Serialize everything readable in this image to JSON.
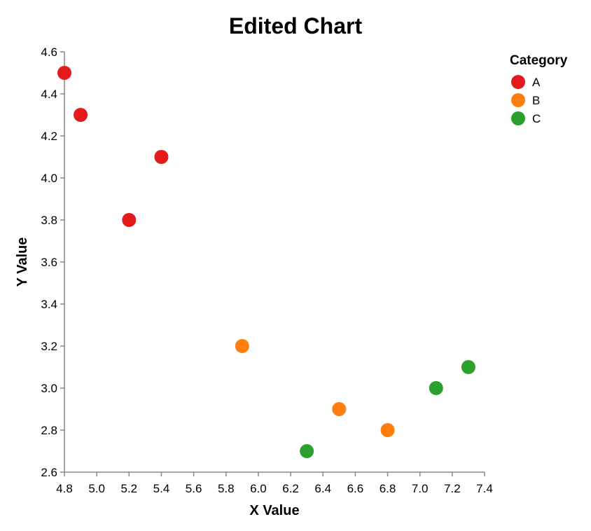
{
  "chart_data": {
    "type": "scatter",
    "title": "Edited Chart",
    "xlabel": "X Value",
    "ylabel": "Y Value",
    "xlim": [
      4.8,
      7.4
    ],
    "ylim": [
      2.6,
      4.6
    ],
    "x_ticks": [
      "4.8",
      "5.0",
      "5.2",
      "5.4",
      "5.6",
      "5.8",
      "6.0",
      "6.2",
      "6.4",
      "6.6",
      "6.8",
      "7.0",
      "7.2",
      "7.4"
    ],
    "y_ticks": [
      "2.6",
      "2.8",
      "3.0",
      "3.2",
      "3.4",
      "3.6",
      "3.8",
      "4.0",
      "4.2",
      "4.4",
      "4.6"
    ],
    "grid": false,
    "legend": {
      "title": "Category",
      "position": "top-right"
    },
    "series": [
      {
        "name": "A",
        "color": "#e41a1c",
        "points": [
          [
            4.8,
            4.5
          ],
          [
            4.9,
            4.3
          ],
          [
            5.4,
            4.1
          ],
          [
            5.2,
            3.8
          ]
        ]
      },
      {
        "name": "B",
        "color": "#ff7f0e",
        "points": [
          [
            5.9,
            3.2
          ],
          [
            6.5,
            2.9
          ],
          [
            6.8,
            2.8
          ]
        ]
      },
      {
        "name": "C",
        "color": "#2ca02c",
        "points": [
          [
            6.3,
            2.7
          ],
          [
            7.1,
            3.0
          ],
          [
            7.3,
            3.1
          ]
        ]
      }
    ]
  }
}
